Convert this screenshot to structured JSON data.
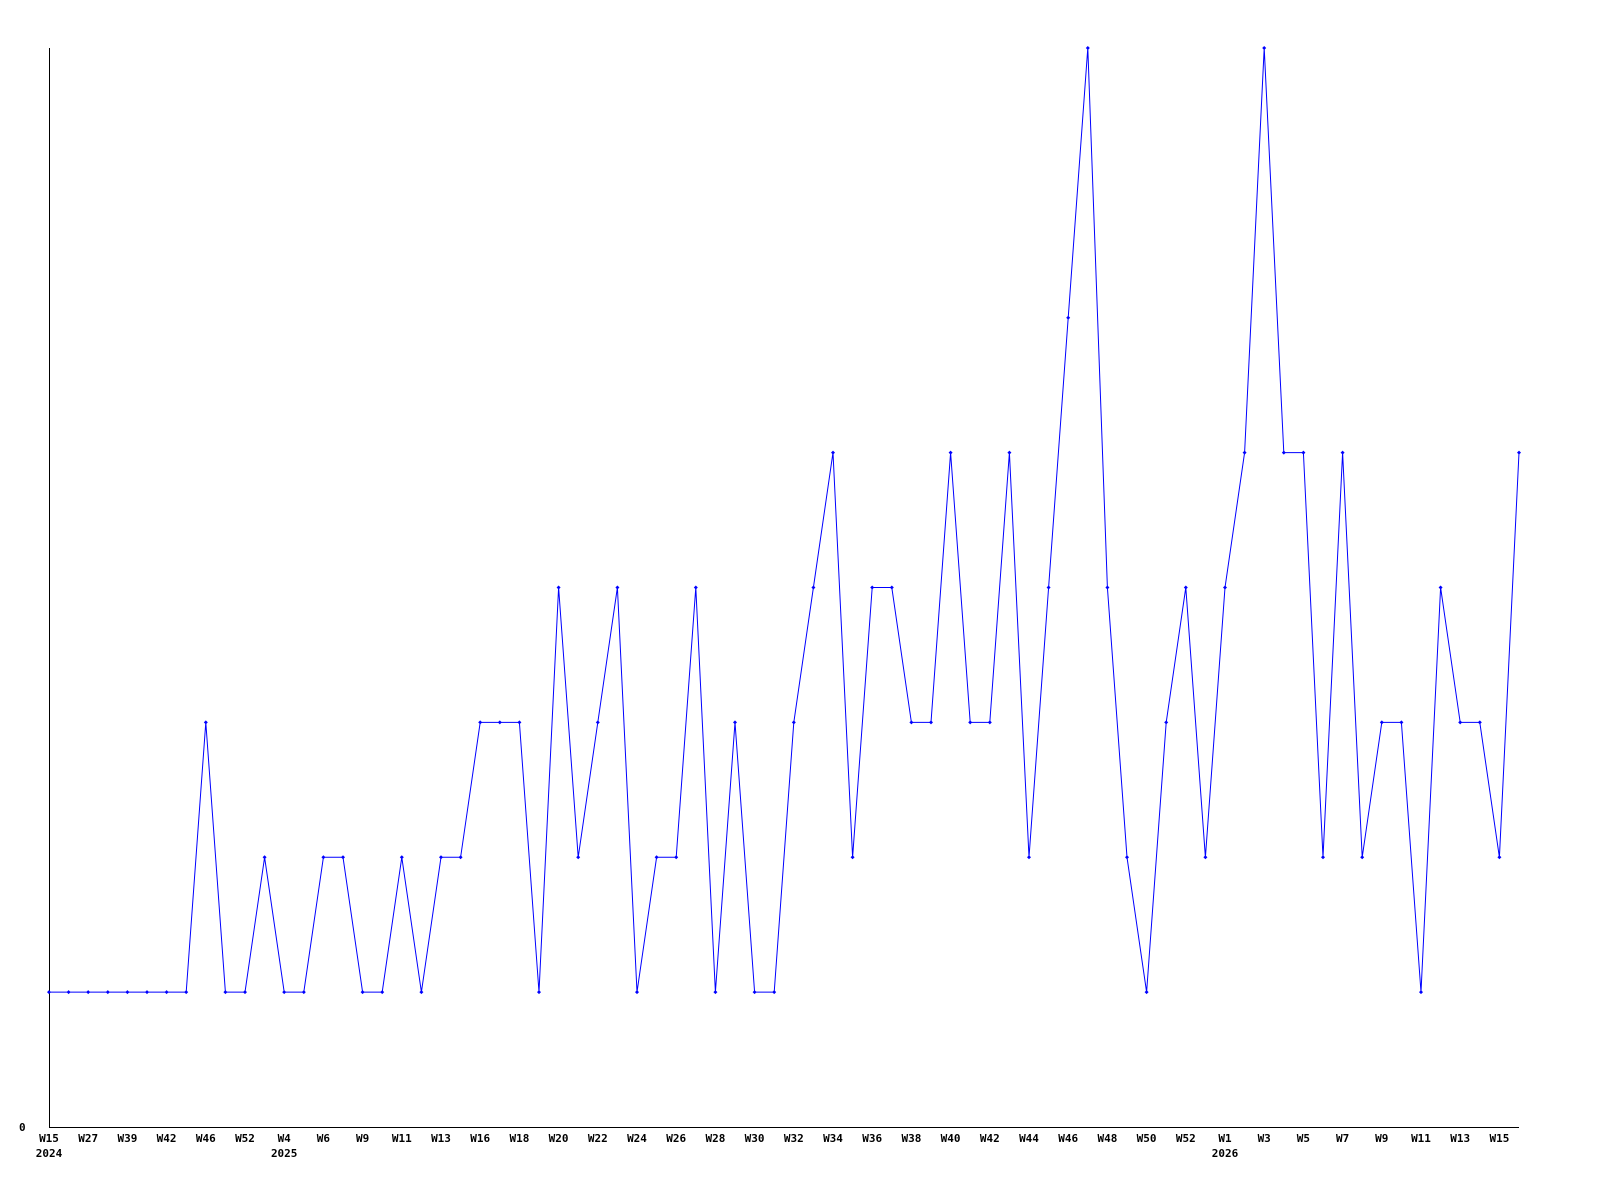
{
  "chart_data": {
    "type": "line",
    "title": "",
    "xlabel": "",
    "ylabel": "",
    "ylim": [
      0,
      8
    ],
    "y_tick_labels": [
      "0"
    ],
    "grid": false,
    "line_color": "#0000ff",
    "x_tick_labels": [
      "W15",
      "W27",
      "W39",
      "W42",
      "W46",
      "W52",
      "W4",
      "W6",
      "W9",
      "W11",
      "W13",
      "W16",
      "W18",
      "W20",
      "W22",
      "W24",
      "W26",
      "W28",
      "W30",
      "W32",
      "W34",
      "W36",
      "W38",
      "W40",
      "W42",
      "W44",
      "W46",
      "W48",
      "W50",
      "W52",
      "W1",
      "W3",
      "W5",
      "W7",
      "W9",
      "W11",
      "W13",
      "W15"
    ],
    "year_labels": [
      {
        "label": "2024",
        "tick_index": 0
      },
      {
        "label": "2025",
        "tick_index": 6
      },
      {
        "label": "2026",
        "tick_index": 30
      }
    ],
    "values": [
      1,
      1,
      1,
      1,
      1,
      1,
      1,
      1,
      3,
      1,
      1,
      2,
      1,
      1,
      2,
      2,
      1,
      1,
      2,
      1,
      2,
      2,
      3,
      3,
      3,
      1,
      4,
      2,
      3,
      4,
      1,
      2,
      2,
      4,
      1,
      3,
      1,
      1,
      3,
      4,
      5,
      2,
      4,
      4,
      3,
      3,
      5,
      3,
      3,
      5,
      2,
      4,
      6,
      8,
      4,
      2,
      1,
      3,
      4,
      2,
      4,
      5,
      8,
      5,
      5,
      2,
      5,
      2,
      3,
      3,
      1,
      4,
      3,
      3,
      2,
      5
    ]
  }
}
